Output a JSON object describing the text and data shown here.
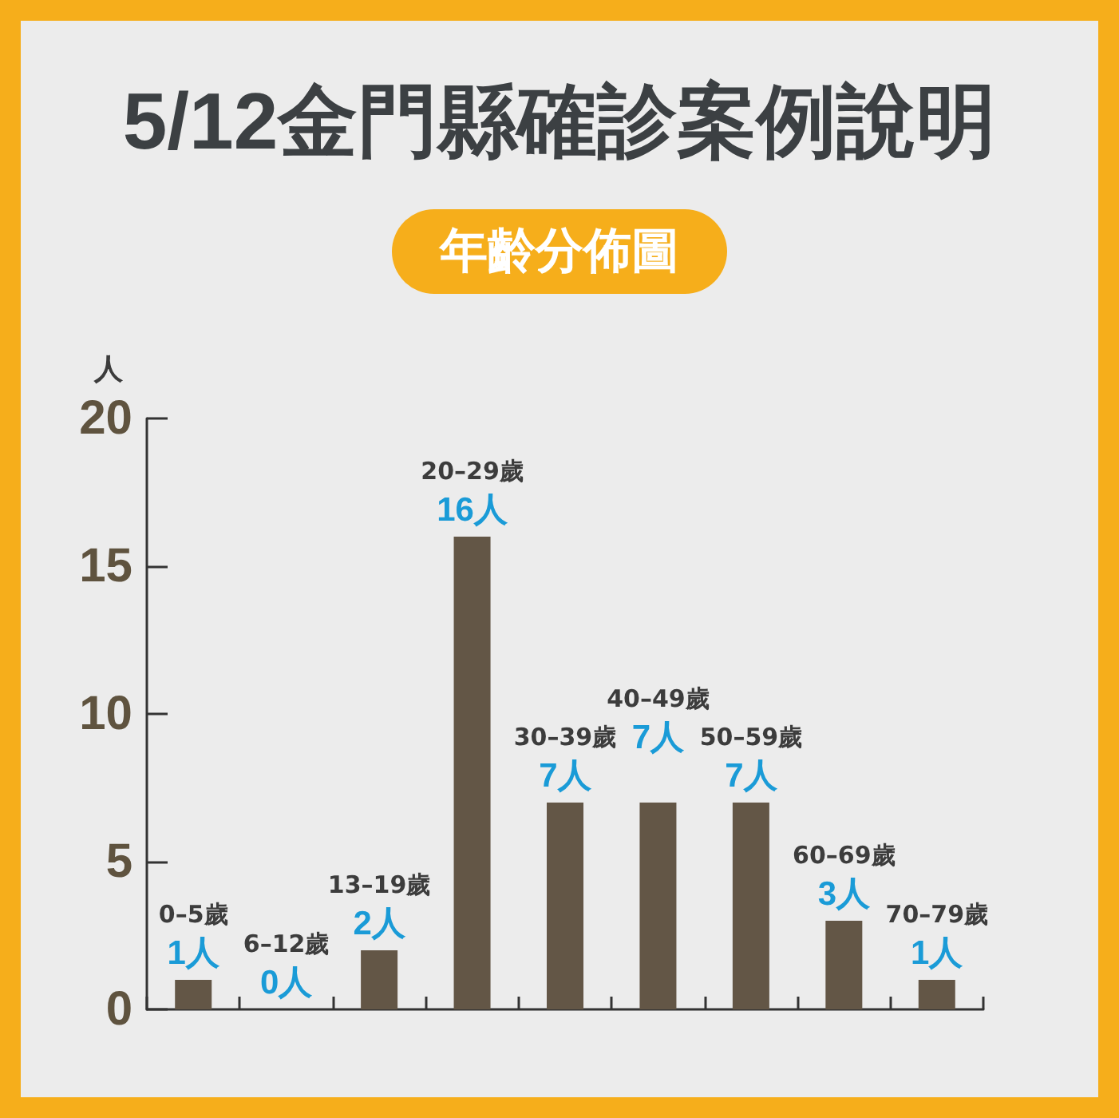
{
  "chart_data": {
    "type": "bar",
    "title": "5/12金門縣確診案例說明",
    "subtitle": "年齡分佈圖",
    "ylabel": "人",
    "categories": [
      "0–5歲",
      "6–12歲",
      "13–19歲",
      "20–29歲",
      "30–39歲",
      "40–49歲",
      "50–59歲",
      "60–69歲",
      "70–79歲"
    ],
    "values": [
      1,
      0,
      2,
      16,
      7,
      7,
      7,
      3,
      1
    ],
    "value_labels": [
      "1人",
      "0人",
      "2人",
      "16人",
      "7人",
      "7人",
      "7人",
      "3人",
      "1人"
    ],
    "color": "#635646",
    "ylim": [
      0,
      20
    ],
    "yticks": [
      0,
      5,
      10,
      15,
      20
    ],
    "grid": false
  }
}
